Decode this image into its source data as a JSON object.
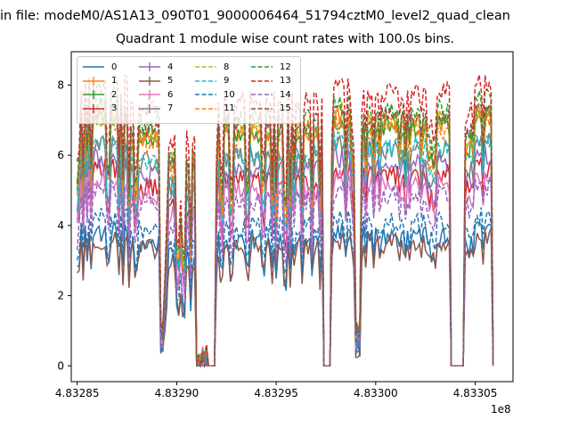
{
  "figure": {
    "suptitle": "in file: modeM0/AS1A13_090T01_9000006464_51794cztM0_level2_quad_clean",
    "title": "Quadrant 1 module wise count rates with 100.0s bins."
  },
  "chart_data": {
    "type": "line",
    "title": "Quadrant 1 module wise count rates with 100.0s bins.",
    "xlabel": "",
    "ylabel": "",
    "x_offset_label": "1e8",
    "xlim": [
      483284700,
      483306900
    ],
    "ylim": [
      -0.45,
      8.95
    ],
    "x_ticks": [
      483285000,
      483290000,
      483295000,
      483300000,
      483305000
    ],
    "x_tick_labels": [
      "4.83285",
      "4.83290",
      "4.83295",
      "4.83300",
      "4.83305"
    ],
    "y_ticks": [
      0,
      2,
      4,
      6,
      8
    ],
    "y_tick_labels": [
      "0",
      "2",
      "4",
      "6",
      "8"
    ],
    "grid": false,
    "legend": {
      "placement": "top-left",
      "columns": 4
    },
    "x_start": 483285000,
    "x_step": 100,
    "x_count": 210,
    "envelope": {
      "segments": [
        {
          "x0": 483285000,
          "x1": 483287600,
          "y": 7.2,
          "amp": 2.6
        },
        {
          "x0": 483287600,
          "x1": 483289200,
          "y": 6.6,
          "amp": 2.8
        },
        {
          "x0": 483289200,
          "x1": 483289500,
          "y": 2.0,
          "amp": 1.5
        },
        {
          "x0": 483289500,
          "x1": 483291000,
          "y": 5.8,
          "amp": 3.4
        },
        {
          "x0": 483291000,
          "x1": 483291600,
          "y": 0.3,
          "amp": 0.3
        },
        {
          "x0": 483291600,
          "x1": 483292000,
          "y": 0.0,
          "amp": 0.0
        },
        {
          "x0": 483292000,
          "x1": 483297400,
          "y": 6.8,
          "amp": 2.6
        },
        {
          "x0": 483297400,
          "x1": 483297800,
          "y": 0.0,
          "amp": 0.0
        },
        {
          "x0": 483297800,
          "x1": 483299000,
          "y": 7.2,
          "amp": 1.8
        },
        {
          "x0": 483299000,
          "x1": 483299300,
          "y": 1.0,
          "amp": 1.0
        },
        {
          "x0": 483299300,
          "x1": 483303800,
          "y": 7.0,
          "amp": 1.4
        },
        {
          "x0": 483303800,
          "x1": 483304500,
          "y": 0.0,
          "amp": 0.0
        },
        {
          "x0": 483304500,
          "x1": 483305900,
          "y": 7.3,
          "amp": 1.2
        }
      ]
    },
    "series": [
      {
        "name": "0",
        "color": "#1f77b4",
        "style": "solid",
        "level": 3.8
      },
      {
        "name": "1",
        "color": "#ff7f0e",
        "style": "solid",
        "level": 7.1
      },
      {
        "name": "2",
        "color": "#2ca02c",
        "style": "solid",
        "level": 7.0
      },
      {
        "name": "3",
        "color": "#d62728",
        "style": "solid",
        "level": 5.6
      },
      {
        "name": "4",
        "color": "#9467bd",
        "style": "solid",
        "level": 5.9
      },
      {
        "name": "5",
        "color": "#8c564b",
        "style": "solid",
        "level": 3.6
      },
      {
        "name": "6",
        "color": "#e377c2",
        "style": "solid",
        "level": 5.3
      },
      {
        "name": "7",
        "color": "#7f7f7f",
        "style": "solid",
        "level": 6.3
      },
      {
        "name": "8",
        "color": "#bcbd22",
        "style": "dashed",
        "level": 7.2
      },
      {
        "name": "9",
        "color": "#17becf",
        "style": "dashed",
        "level": 6.4
      },
      {
        "name": "10",
        "color": "#1f77b4",
        "style": "dashed",
        "level": 4.2
      },
      {
        "name": "11",
        "color": "#ff7f0e",
        "style": "dashed",
        "level": 6.9
      },
      {
        "name": "12",
        "color": "#2ca02c",
        "style": "dashed",
        "level": 7.5
      },
      {
        "name": "13",
        "color": "#d62728",
        "style": "dashed",
        "level": 8.0
      },
      {
        "name": "14",
        "color": "#9467bd",
        "style": "dashed",
        "level": 5.0
      },
      {
        "name": "15",
        "color": "#8c564b",
        "style": "dashed",
        "level": 7.3
      }
    ]
  }
}
